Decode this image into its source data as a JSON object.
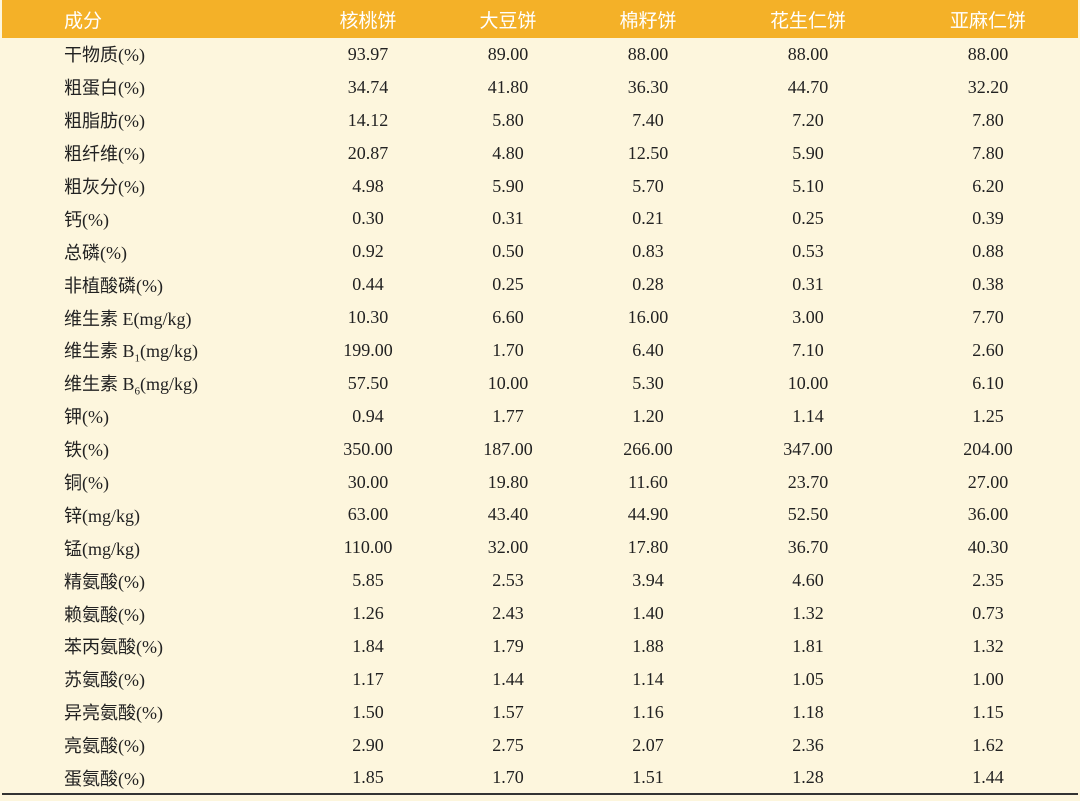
{
  "table": {
    "header": [
      "成分",
      "核桃饼",
      "大豆饼",
      "棉籽饼",
      "花生仁饼",
      "亚麻仁饼"
    ],
    "rows": [
      {
        "label": "干物质(%)",
        "values": [
          "93.97",
          "89.00",
          "88.00",
          "88.00",
          "88.00"
        ]
      },
      {
        "label": "粗蛋白(%)",
        "values": [
          "34.74",
          "41.80",
          "36.30",
          "44.70",
          "32.20"
        ]
      },
      {
        "label": "粗脂肪(%)",
        "values": [
          "14.12",
          "5.80",
          "7.40",
          "7.20",
          "7.80"
        ]
      },
      {
        "label": "粗纤维(%)",
        "values": [
          "20.87",
          "4.80",
          "12.50",
          "5.90",
          "7.80"
        ]
      },
      {
        "label": "粗灰分(%)",
        "values": [
          "4.98",
          "5.90",
          "5.70",
          "5.10",
          "6.20"
        ]
      },
      {
        "label": "钙(%)",
        "values": [
          "0.30",
          "0.31",
          "0.21",
          "0.25",
          "0.39"
        ]
      },
      {
        "label": "总磷(%)",
        "values": [
          "0.92",
          "0.50",
          "0.83",
          "0.53",
          "0.88"
        ]
      },
      {
        "label": "非植酸磷(%)",
        "values": [
          "0.44",
          "0.25",
          "0.28",
          "0.31",
          "0.38"
        ]
      },
      {
        "label": "维生素 E(mg/kg)",
        "values": [
          "10.30",
          "6.60",
          "16.00",
          "3.00",
          "7.70"
        ]
      },
      {
        "label": [
          "维生素 B",
          "1",
          "(mg/kg)"
        ],
        "values": [
          "199.00",
          "1.70",
          "6.40",
          "7.10",
          "2.60"
        ]
      },
      {
        "label": [
          "维生素 B",
          "6",
          "(mg/kg)"
        ],
        "values": [
          "57.50",
          "10.00",
          "5.30",
          "10.00",
          "6.10"
        ]
      },
      {
        "label": "钾(%)",
        "values": [
          "0.94",
          "1.77",
          "1.20",
          "1.14",
          "1.25"
        ]
      },
      {
        "label": "铁(%)",
        "values": [
          "350.00",
          "187.00",
          "266.00",
          "347.00",
          "204.00"
        ]
      },
      {
        "label": "铜(%)",
        "values": [
          "30.00",
          "19.80",
          "11.60",
          "23.70",
          "27.00"
        ]
      },
      {
        "label": "锌(mg/kg)",
        "values": [
          "63.00",
          "43.40",
          "44.90",
          "52.50",
          "36.00"
        ]
      },
      {
        "label": "锰(mg/kg)",
        "values": [
          "110.00",
          "32.00",
          "17.80",
          "36.70",
          "40.30"
        ]
      },
      {
        "label": "精氨酸(%)",
        "values": [
          "5.85",
          "2.53",
          "3.94",
          "4.60",
          "2.35"
        ]
      },
      {
        "label": "赖氨酸(%)",
        "values": [
          "1.26",
          "2.43",
          "1.40",
          "1.32",
          "0.73"
        ]
      },
      {
        "label": "苯丙氨酸(%)",
        "values": [
          "1.84",
          "1.79",
          "1.88",
          "1.81",
          "1.32"
        ]
      },
      {
        "label": "苏氨酸(%)",
        "values": [
          "1.17",
          "1.44",
          "1.14",
          "1.05",
          "1.00"
        ]
      },
      {
        "label": "异亮氨酸(%)",
        "values": [
          "1.50",
          "1.57",
          "1.16",
          "1.18",
          "1.15"
        ]
      },
      {
        "label": "亮氨酸(%)",
        "values": [
          "2.90",
          "2.75",
          "2.07",
          "2.36",
          "1.62"
        ]
      },
      {
        "label": "蛋氨酸(%)",
        "values": [
          "1.85",
          "1.70",
          "1.51",
          "1.28",
          "1.44"
        ]
      }
    ]
  }
}
